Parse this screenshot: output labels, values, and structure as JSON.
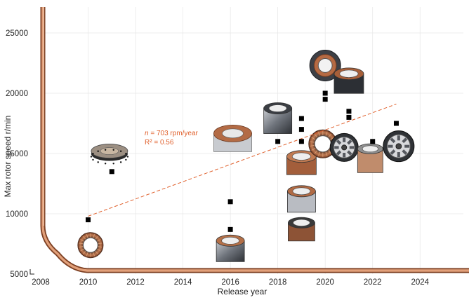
{
  "chart_data": {
    "type": "scatter",
    "title": "",
    "xlabel": "Release year",
    "ylabel": "Max rotor speed r/min",
    "xlim": [
      2008,
      2025
    ],
    "ylim": [
      5000,
      27000
    ],
    "x_ticks": [
      2008,
      2010,
      2012,
      2014,
      2016,
      2018,
      2020,
      2022,
      2024
    ],
    "y_ticks": [
      5000,
      10000,
      15000,
      20000,
      25000
    ],
    "grid": true,
    "legend": "none",
    "marker_color": "#000000",
    "trend_color": "#e0602c",
    "points": [
      {
        "x": 2010,
        "y": 9500
      },
      {
        "x": 2011,
        "y": 13500
      },
      {
        "x": 2016,
        "y": 11000
      },
      {
        "x": 2016,
        "y": 8700
      },
      {
        "x": 2018,
        "y": 16000
      },
      {
        "x": 2019,
        "y": 17900
      },
      {
        "x": 2019,
        "y": 17000
      },
      {
        "x": 2019,
        "y": 16000
      },
      {
        "x": 2020,
        "y": 20000
      },
      {
        "x": 2020,
        "y": 19500
      },
      {
        "x": 2021,
        "y": 18500
      },
      {
        "x": 2021,
        "y": 18000
      },
      {
        "x": 2022,
        "y": 16000
      },
      {
        "x": 2023,
        "y": 17500
      }
    ],
    "trendline": {
      "start": {
        "x": 2010,
        "y": 9800
      },
      "end": {
        "x": 2023,
        "y": 19100
      }
    },
    "annotation": {
      "line1_var": "n",
      "line1_text": " = 703 rpm/year",
      "line2_text": "R² = 0.56"
    },
    "motor_images": [
      {
        "name": "motor-2010-ring",
        "x": 2010.1,
        "y": 7400
      },
      {
        "name": "motor-2011-flat",
        "x": 2010.9,
        "y": 15200
      },
      {
        "name": "motor-2016-stator",
        "x": 2016,
        "y": 6900
      },
      {
        "name": "motor-2016-top",
        "x": 2016.1,
        "y": 16200
      },
      {
        "name": "motor-2018-housing",
        "x": 2018,
        "y": 17700
      },
      {
        "name": "motor-2019-stator-a",
        "x": 2019,
        "y": 14000
      },
      {
        "name": "motor-2019-stator-b",
        "x": 2019,
        "y": 11000
      },
      {
        "name": "motor-2019-stator-c",
        "x": 2019,
        "y": 8500
      },
      {
        "name": "motor-2020-ring",
        "x": 2019.9,
        "y": 15800
      },
      {
        "name": "motor-2020-large",
        "x": 2020,
        "y": 22300
      },
      {
        "name": "motor-2020-housing",
        "x": 2021,
        "y": 20800
      },
      {
        "name": "motor-2021-rotor",
        "x": 2020.8,
        "y": 15500
      },
      {
        "name": "motor-2022-stator",
        "x": 2021.9,
        "y": 14400
      },
      {
        "name": "motor-2023-rotor",
        "x": 2023.1,
        "y": 15600
      }
    ]
  }
}
